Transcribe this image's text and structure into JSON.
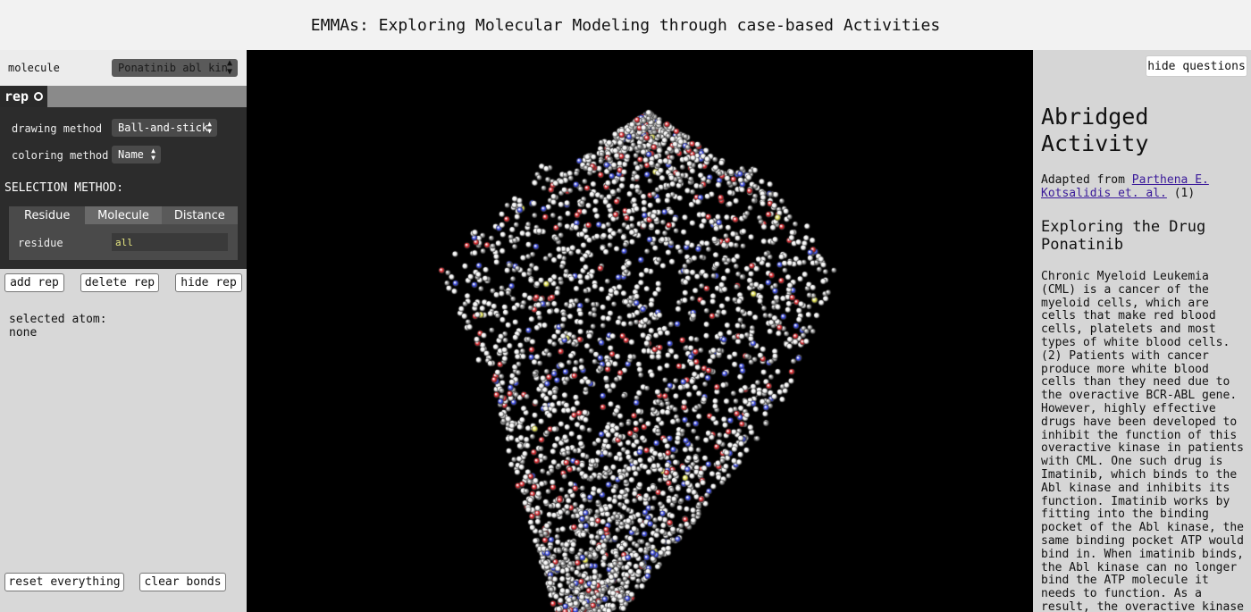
{
  "header": {
    "title": "EMMAs: Exploring Molecular Modeling through case-based Activities"
  },
  "left": {
    "molecule_label": "molecule",
    "molecule_value": "Ponatinib abl kin",
    "rep_tab": "rep",
    "drawing_label": "drawing method",
    "drawing_value": "Ball-and-stick",
    "coloring_label": "coloring method",
    "coloring_value": "Name",
    "selection_heading": "SELECTION METHOD:",
    "tabs": [
      "Residue",
      "Molecule",
      "Distance"
    ],
    "residue_label": "residue",
    "residue_value": "all",
    "add_rep": "add rep",
    "delete_rep": "delete rep",
    "hide_rep": "hide rep",
    "selected_atom_label": "selected atom:",
    "selected_atom_value": "none",
    "reset": "reset everything",
    "clear_bonds": "clear bonds"
  },
  "right": {
    "hide_questions": "hide questions",
    "title_line1": "Abridged",
    "title_line2": "Activity",
    "adapted_prefix": "Adapted from ",
    "adapted_link": "Parthena E. Kotsalidis et. al.",
    "adapted_suffix": " (1)",
    "subheading": "Exploring the Drug Ponatinib",
    "paragraph": "Chronic Myeloid Leukemia (CML) is a cancer of the myeloid cells, which are cells that make red blood cells, platelets and most types of white blood cells.(2) Patients with cancer produce more white blood cells than they need due to the overactive BCR-ABL gene. However, highly effective drugs have been developed to inhibit the function of this overactive kinase in patients with CML. One such drug is Imatinib, which binds to the Abl kinase and inhibits its function. Imatinib works by fitting into the binding pocket of the Abl kinase, the same binding pocket ATP would bind in. When imatinib binds, the Abl kinase can no longer bind the ATP molecule it needs to function. As a result, the overactive kinase gets turned off."
  },
  "colors": {
    "carbon": "#9a9a9a",
    "hydrogen": "#f4f4f4",
    "oxygen": "#e0242a",
    "nitrogen": "#3848e8",
    "sulfur": "#e6e650",
    "background": "#000000"
  }
}
